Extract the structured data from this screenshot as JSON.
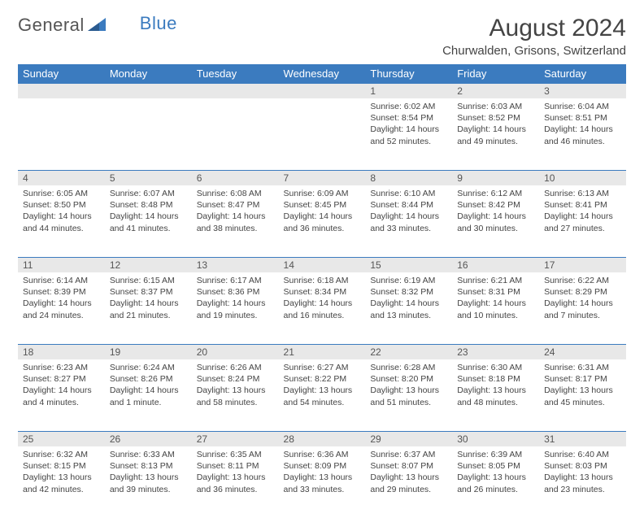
{
  "logo": {
    "text1": "General",
    "text2": "Blue"
  },
  "title": "August 2024",
  "location": "Churwalden, Grisons, Switzerland",
  "colors": {
    "header_bg": "#3b7bbf",
    "header_text": "#ffffff",
    "daynum_bg": "#e8e8e8",
    "border": "#3b7bbf",
    "text": "#444444",
    "page_bg": "#ffffff"
  },
  "fonts": {
    "title_pt": 30,
    "location_pt": 15,
    "header_pt": 13,
    "daynum_pt": 12,
    "detail_pt": 10.5
  },
  "day_headers": [
    "Sunday",
    "Monday",
    "Tuesday",
    "Wednesday",
    "Thursday",
    "Friday",
    "Saturday"
  ],
  "weeks": [
    [
      null,
      null,
      null,
      null,
      {
        "n": "1",
        "sr": "Sunrise: 6:02 AM",
        "ss": "Sunset: 8:54 PM",
        "dl1": "Daylight: 14 hours",
        "dl2": "and 52 minutes."
      },
      {
        "n": "2",
        "sr": "Sunrise: 6:03 AM",
        "ss": "Sunset: 8:52 PM",
        "dl1": "Daylight: 14 hours",
        "dl2": "and 49 minutes."
      },
      {
        "n": "3",
        "sr": "Sunrise: 6:04 AM",
        "ss": "Sunset: 8:51 PM",
        "dl1": "Daylight: 14 hours",
        "dl2": "and 46 minutes."
      }
    ],
    [
      {
        "n": "4",
        "sr": "Sunrise: 6:05 AM",
        "ss": "Sunset: 8:50 PM",
        "dl1": "Daylight: 14 hours",
        "dl2": "and 44 minutes."
      },
      {
        "n": "5",
        "sr": "Sunrise: 6:07 AM",
        "ss": "Sunset: 8:48 PM",
        "dl1": "Daylight: 14 hours",
        "dl2": "and 41 minutes."
      },
      {
        "n": "6",
        "sr": "Sunrise: 6:08 AM",
        "ss": "Sunset: 8:47 PM",
        "dl1": "Daylight: 14 hours",
        "dl2": "and 38 minutes."
      },
      {
        "n": "7",
        "sr": "Sunrise: 6:09 AM",
        "ss": "Sunset: 8:45 PM",
        "dl1": "Daylight: 14 hours",
        "dl2": "and 36 minutes."
      },
      {
        "n": "8",
        "sr": "Sunrise: 6:10 AM",
        "ss": "Sunset: 8:44 PM",
        "dl1": "Daylight: 14 hours",
        "dl2": "and 33 minutes."
      },
      {
        "n": "9",
        "sr": "Sunrise: 6:12 AM",
        "ss": "Sunset: 8:42 PM",
        "dl1": "Daylight: 14 hours",
        "dl2": "and 30 minutes."
      },
      {
        "n": "10",
        "sr": "Sunrise: 6:13 AM",
        "ss": "Sunset: 8:41 PM",
        "dl1": "Daylight: 14 hours",
        "dl2": "and 27 minutes."
      }
    ],
    [
      {
        "n": "11",
        "sr": "Sunrise: 6:14 AM",
        "ss": "Sunset: 8:39 PM",
        "dl1": "Daylight: 14 hours",
        "dl2": "and 24 minutes."
      },
      {
        "n": "12",
        "sr": "Sunrise: 6:15 AM",
        "ss": "Sunset: 8:37 PM",
        "dl1": "Daylight: 14 hours",
        "dl2": "and 21 minutes."
      },
      {
        "n": "13",
        "sr": "Sunrise: 6:17 AM",
        "ss": "Sunset: 8:36 PM",
        "dl1": "Daylight: 14 hours",
        "dl2": "and 19 minutes."
      },
      {
        "n": "14",
        "sr": "Sunrise: 6:18 AM",
        "ss": "Sunset: 8:34 PM",
        "dl1": "Daylight: 14 hours",
        "dl2": "and 16 minutes."
      },
      {
        "n": "15",
        "sr": "Sunrise: 6:19 AM",
        "ss": "Sunset: 8:32 PM",
        "dl1": "Daylight: 14 hours",
        "dl2": "and 13 minutes."
      },
      {
        "n": "16",
        "sr": "Sunrise: 6:21 AM",
        "ss": "Sunset: 8:31 PM",
        "dl1": "Daylight: 14 hours",
        "dl2": "and 10 minutes."
      },
      {
        "n": "17",
        "sr": "Sunrise: 6:22 AM",
        "ss": "Sunset: 8:29 PM",
        "dl1": "Daylight: 14 hours",
        "dl2": "and 7 minutes."
      }
    ],
    [
      {
        "n": "18",
        "sr": "Sunrise: 6:23 AM",
        "ss": "Sunset: 8:27 PM",
        "dl1": "Daylight: 14 hours",
        "dl2": "and 4 minutes."
      },
      {
        "n": "19",
        "sr": "Sunrise: 6:24 AM",
        "ss": "Sunset: 8:26 PM",
        "dl1": "Daylight: 14 hours",
        "dl2": "and 1 minute."
      },
      {
        "n": "20",
        "sr": "Sunrise: 6:26 AM",
        "ss": "Sunset: 8:24 PM",
        "dl1": "Daylight: 13 hours",
        "dl2": "and 58 minutes."
      },
      {
        "n": "21",
        "sr": "Sunrise: 6:27 AM",
        "ss": "Sunset: 8:22 PM",
        "dl1": "Daylight: 13 hours",
        "dl2": "and 54 minutes."
      },
      {
        "n": "22",
        "sr": "Sunrise: 6:28 AM",
        "ss": "Sunset: 8:20 PM",
        "dl1": "Daylight: 13 hours",
        "dl2": "and 51 minutes."
      },
      {
        "n": "23",
        "sr": "Sunrise: 6:30 AM",
        "ss": "Sunset: 8:18 PM",
        "dl1": "Daylight: 13 hours",
        "dl2": "and 48 minutes."
      },
      {
        "n": "24",
        "sr": "Sunrise: 6:31 AM",
        "ss": "Sunset: 8:17 PM",
        "dl1": "Daylight: 13 hours",
        "dl2": "and 45 minutes."
      }
    ],
    [
      {
        "n": "25",
        "sr": "Sunrise: 6:32 AM",
        "ss": "Sunset: 8:15 PM",
        "dl1": "Daylight: 13 hours",
        "dl2": "and 42 minutes."
      },
      {
        "n": "26",
        "sr": "Sunrise: 6:33 AM",
        "ss": "Sunset: 8:13 PM",
        "dl1": "Daylight: 13 hours",
        "dl2": "and 39 minutes."
      },
      {
        "n": "27",
        "sr": "Sunrise: 6:35 AM",
        "ss": "Sunset: 8:11 PM",
        "dl1": "Daylight: 13 hours",
        "dl2": "and 36 minutes."
      },
      {
        "n": "28",
        "sr": "Sunrise: 6:36 AM",
        "ss": "Sunset: 8:09 PM",
        "dl1": "Daylight: 13 hours",
        "dl2": "and 33 minutes."
      },
      {
        "n": "29",
        "sr": "Sunrise: 6:37 AM",
        "ss": "Sunset: 8:07 PM",
        "dl1": "Daylight: 13 hours",
        "dl2": "and 29 minutes."
      },
      {
        "n": "30",
        "sr": "Sunrise: 6:39 AM",
        "ss": "Sunset: 8:05 PM",
        "dl1": "Daylight: 13 hours",
        "dl2": "and 26 minutes."
      },
      {
        "n": "31",
        "sr": "Sunrise: 6:40 AM",
        "ss": "Sunset: 8:03 PM",
        "dl1": "Daylight: 13 hours",
        "dl2": "and 23 minutes."
      }
    ]
  ]
}
